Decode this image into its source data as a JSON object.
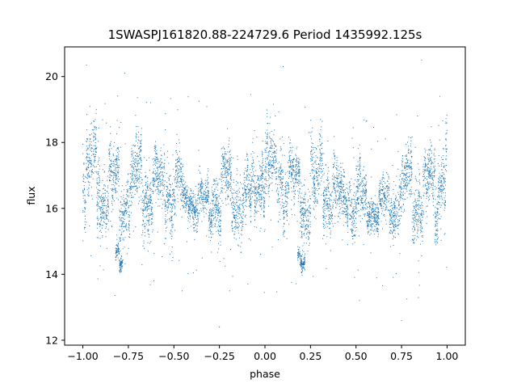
{
  "chart_data": {
    "type": "scatter",
    "title": "1SWASPJ161820.88-224729.6 Period 1435992.125s",
    "xlabel": "phase",
    "ylabel": "flux",
    "xlim": [
      -1.1,
      1.1
    ],
    "ylim": [
      11.85,
      20.9
    ],
    "xticks": [
      -1.0,
      -0.75,
      -0.5,
      -0.25,
      0.0,
      0.25,
      0.5,
      0.75,
      1.0
    ],
    "xtick_labels": [
      "−1.00",
      "−0.75",
      "−0.50",
      "−0.25",
      "0.00",
      "0.25",
      "0.50",
      "0.75",
      "1.00"
    ],
    "yticks": [
      12,
      14,
      16,
      18,
      20
    ],
    "ytick_labels": [
      "12",
      "14",
      "16",
      "18",
      "20"
    ],
    "grid": false,
    "marker_color": "#1f77b4",
    "series": [
      {
        "name": "",
        "description_points": "dense cloud of small points, phase folded twice (-1 to 1)",
        "x_range": [
          -1.0,
          1.0
        ],
        "y_center": 16.4,
        "y_spread": [
          13.2,
          19.5
        ],
        "outliers": [
          [
            -0.98,
            20.35
          ],
          [
            -0.77,
            20.1
          ],
          [
            0.1,
            20.3
          ],
          [
            0.86,
            20.5
          ],
          [
            0.96,
            19.4
          ],
          [
            -0.25,
            12.4
          ],
          [
            0.75,
            12.6
          ]
        ],
        "bands": [
          {
            "x": [
              -1.0,
              -0.9
            ],
            "y": [
              15.6,
              18.3
            ]
          },
          {
            "x": [
              -0.9,
              -0.8
            ],
            "y": [
              15.4,
              17.6
            ]
          },
          {
            "x": [
              -0.82,
              -0.78
            ],
            "y": [
              14.2,
              14.8
            ]
          },
          {
            "x": [
              -0.8,
              -0.65
            ],
            "y": [
              15.2,
              17.8
            ]
          },
          {
            "x": [
              -0.65,
              -0.45
            ],
            "y": [
              15.3,
              17.5
            ]
          },
          {
            "x": [
              -0.45,
              -0.3
            ],
            "y": [
              15.4,
              16.9
            ]
          },
          {
            "x": [
              -0.3,
              -0.05
            ],
            "y": [
              15.3,
              17.6
            ]
          },
          {
            "x": [
              -0.05,
              0.1
            ],
            "y": [
              15.8,
              18.3
            ]
          },
          {
            "x": [
              0.1,
              0.2
            ],
            "y": [
              15.4,
              17.6
            ]
          },
          {
            "x": [
              0.18,
              0.22
            ],
            "y": [
              14.2,
              14.8
            ]
          },
          {
            "x": [
              0.2,
              0.35
            ],
            "y": [
              15.2,
              17.8
            ]
          },
          {
            "x": [
              0.35,
              0.55
            ],
            "y": [
              15.3,
              17.5
            ]
          },
          {
            "x": [
              0.55,
              0.7
            ],
            "y": [
              15.4,
              16.9
            ]
          },
          {
            "x": [
              0.7,
              0.95
            ],
            "y": [
              15.3,
              17.6
            ]
          },
          {
            "x": [
              0.95,
              1.0
            ],
            "y": [
              15.8,
              18.3
            ]
          }
        ]
      }
    ]
  }
}
